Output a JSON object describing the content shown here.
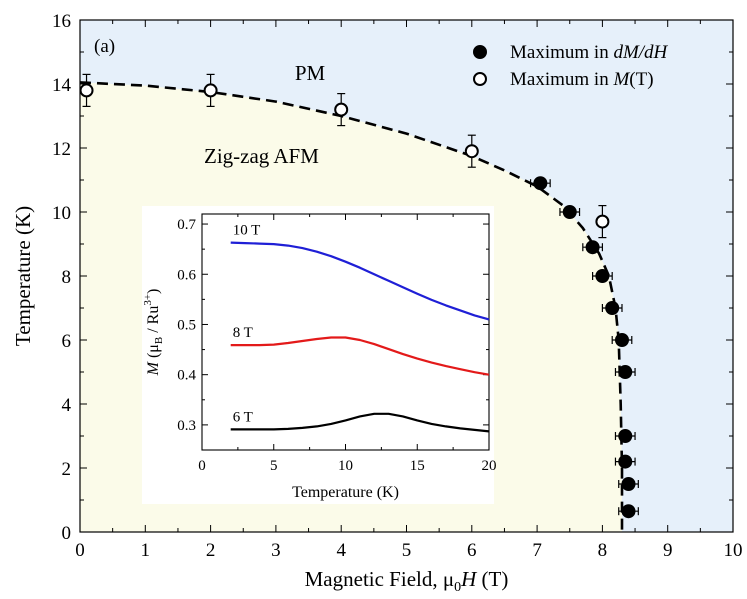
{
  "chart_data": [
    {
      "type": "scatter",
      "panel_label": "(a)",
      "xlabel_main": "Magnetic Field, μ",
      "xlabel_sub": "0",
      "xlabel_var": "H",
      "xlabel_unit": " (T)",
      "ylabel": "Temperature (K)",
      "xlim": [
        0,
        10
      ],
      "ylim": [
        0,
        16
      ],
      "xticks": [
        "0",
        "1",
        "2",
        "3",
        "4",
        "5",
        "6",
        "7",
        "8",
        "9",
        "10"
      ],
      "yticks": [
        "0",
        "2",
        "4",
        "6",
        "8",
        "10",
        "12",
        "14",
        "16"
      ],
      "region_labels": {
        "pm": "PM",
        "afm": "Zig-zag AFM"
      },
      "colors": {
        "pm_region": "#e6f0fa",
        "afm_region": "#fbfbe9",
        "marker": "#000000"
      },
      "legend_placement": "top-right",
      "series": [
        {
          "name": "Maximum in dM/dH",
          "legend_prefix": "Maximum in ",
          "legend_italic": "dM/dH",
          "legend_suffix": "",
          "marker": "filled-circle",
          "points": [
            {
              "x": 7.05,
              "y": 10.9,
              "xerr": 0.15,
              "yerr": 0
            },
            {
              "x": 7.5,
              "y": 10.0,
              "xerr": 0.15,
              "yerr": 0
            },
            {
              "x": 7.85,
              "y": 8.9,
              "xerr": 0.15,
              "yerr": 0
            },
            {
              "x": 8.0,
              "y": 8.0,
              "xerr": 0.15,
              "yerr": 0
            },
            {
              "x": 8.15,
              "y": 7.0,
              "xerr": 0.15,
              "yerr": 0
            },
            {
              "x": 8.3,
              "y": 6.0,
              "xerr": 0.15,
              "yerr": 0
            },
            {
              "x": 8.35,
              "y": 5.0,
              "xerr": 0.15,
              "yerr": 0
            },
            {
              "x": 8.35,
              "y": 3.0,
              "xerr": 0.15,
              "yerr": 0
            },
            {
              "x": 8.35,
              "y": 2.2,
              "xerr": 0.15,
              "yerr": 0
            },
            {
              "x": 8.4,
              "y": 1.5,
              "xerr": 0.15,
              "yerr": 0
            },
            {
              "x": 8.4,
              "y": 0.65,
              "xerr": 0.15,
              "yerr": 0
            }
          ]
        },
        {
          "name": "Maximum in M(T)",
          "legend_prefix": "Maximum in ",
          "legend_italic": "M",
          "legend_suffix": "(T)",
          "marker": "open-circle",
          "points": [
            {
              "x": 0.1,
              "y": 13.8,
              "xerr": 0,
              "yerr": 0.5
            },
            {
              "x": 2.0,
              "y": 13.8,
              "xerr": 0,
              "yerr": 0.5
            },
            {
              "x": 4.0,
              "y": 13.2,
              "xerr": 0,
              "yerr": 0.5
            },
            {
              "x": 6.0,
              "y": 11.9,
              "xerr": 0,
              "yerr": 0.5
            },
            {
              "x": 8.0,
              "y": 9.7,
              "xerr": 0,
              "yerr": 0.5
            }
          ]
        }
      ],
      "boundary": [
        {
          "x": 0,
          "y": 14.05
        },
        {
          "x": 1,
          "y": 13.95
        },
        {
          "x": 2,
          "y": 13.75
        },
        {
          "x": 3,
          "y": 13.45
        },
        {
          "x": 4,
          "y": 13.0
        },
        {
          "x": 5,
          "y": 12.45
        },
        {
          "x": 6,
          "y": 11.75
        },
        {
          "x": 6.5,
          "y": 11.3
        },
        {
          "x": 7,
          "y": 10.8
        },
        {
          "x": 7.4,
          "y": 10.2
        },
        {
          "x": 7.7,
          "y": 9.5
        },
        {
          "x": 7.95,
          "y": 8.7
        },
        {
          "x": 8.1,
          "y": 8.0
        },
        {
          "x": 8.2,
          "y": 7.0
        },
        {
          "x": 8.25,
          "y": 6.0
        },
        {
          "x": 8.28,
          "y": 4.0
        },
        {
          "x": 8.3,
          "y": 2.0
        },
        {
          "x": 8.3,
          "y": 0
        }
      ]
    },
    {
      "type": "line",
      "xlabel": "Temperature (K)",
      "ylabel_var": "M",
      "ylabel_open": " (μ",
      "ylabel_sub": "B",
      "ylabel_mid": " / Ru",
      "ylabel_sup": "3+",
      "ylabel_close": ")",
      "xlim": [
        0,
        20
      ],
      "ylim": [
        0.25,
        0.72
      ],
      "xticks": [
        "0",
        "5",
        "10",
        "15",
        "20"
      ],
      "yticks": [
        "0.3",
        "0.4",
        "0.5",
        "0.6",
        "0.7"
      ],
      "series": [
        {
          "name": "10 T",
          "color": "#1f1fd6",
          "x": [
            2,
            3,
            4,
            5,
            6,
            7,
            8,
            9,
            10,
            11,
            12,
            13,
            14,
            15,
            16,
            17,
            18,
            19,
            20
          ],
          "y": [
            0.663,
            0.662,
            0.661,
            0.66,
            0.657,
            0.652,
            0.645,
            0.636,
            0.625,
            0.613,
            0.6,
            0.587,
            0.574,
            0.561,
            0.549,
            0.538,
            0.528,
            0.518,
            0.51
          ]
        },
        {
          "name": "8 T",
          "color": "#e31a1a",
          "x": [
            2,
            3,
            4,
            5,
            6,
            7,
            8,
            9,
            10,
            11,
            12,
            13,
            14,
            15,
            16,
            17,
            18,
            19,
            20
          ],
          "y": [
            0.459,
            0.459,
            0.459,
            0.46,
            0.463,
            0.467,
            0.471,
            0.474,
            0.474,
            0.469,
            0.461,
            0.451,
            0.441,
            0.432,
            0.424,
            0.417,
            0.411,
            0.405,
            0.4
          ]
        },
        {
          "name": "6 T",
          "color": "#000000",
          "x": [
            2,
            3,
            4,
            5,
            6,
            7,
            8,
            9,
            10,
            11,
            12,
            13,
            14,
            15,
            16,
            17,
            18,
            19,
            20
          ],
          "y": [
            0.291,
            0.291,
            0.291,
            0.291,
            0.292,
            0.294,
            0.297,
            0.302,
            0.309,
            0.317,
            0.322,
            0.322,
            0.317,
            0.309,
            0.302,
            0.297,
            0.293,
            0.29,
            0.287
          ]
        }
      ]
    }
  ]
}
